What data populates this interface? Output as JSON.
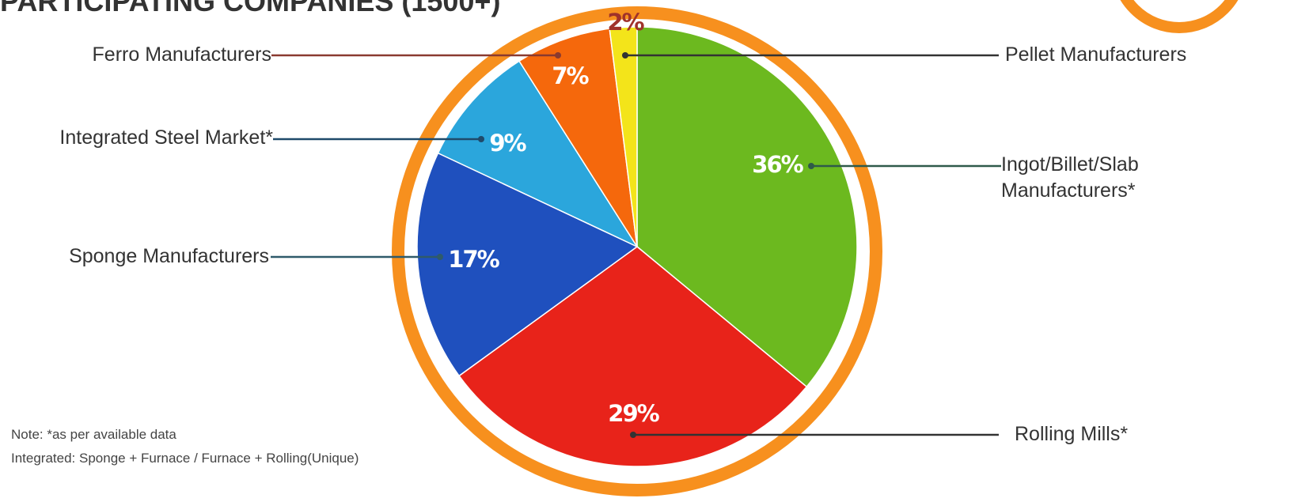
{
  "chart_data": {
    "type": "pie",
    "title": "PARTICIPATING COMPANIES (1500+)",
    "categories": [
      "Ingot/Billet/Slab\nManufacturers*",
      "Rolling Mills*",
      "Sponge Manufacturers",
      "Integrated Steel Market*",
      "Ferro Manufacturers",
      "Pellet Manufacturers"
    ],
    "values": [
      36,
      29,
      17,
      9,
      7,
      2
    ],
    "value_labels": [
      "36%",
      "29%",
      "17%",
      "9%",
      "7%",
      "2%"
    ],
    "colors": [
      "#6cb91f",
      "#e8231a",
      "#1f50be",
      "#2ba6dc",
      "#f5680c",
      "#f3e41a"
    ],
    "notes": [
      "Note: *as per available data",
      "Integrated: Sponge + Furnace / Furnace + Rolling(Unique)"
    ]
  }
}
